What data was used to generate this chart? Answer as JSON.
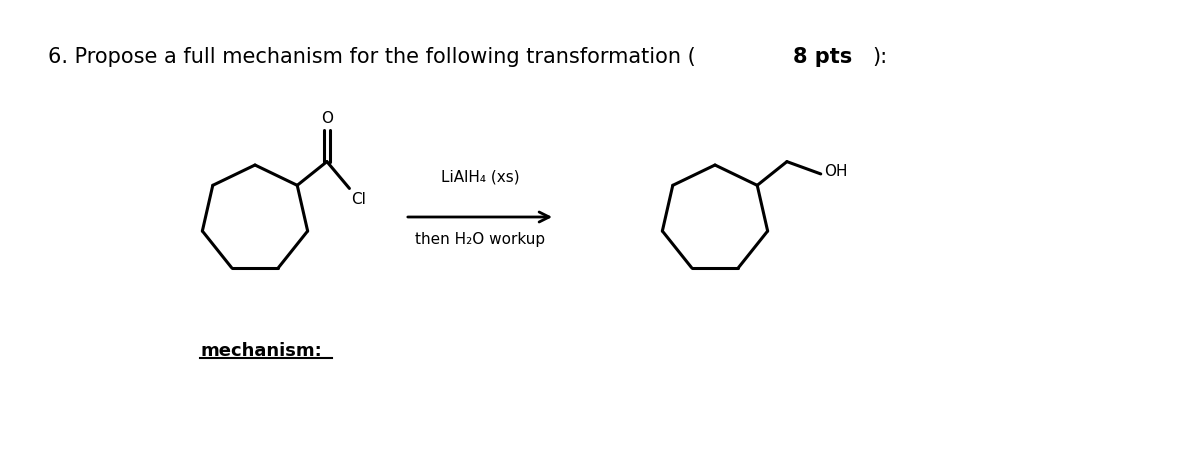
{
  "title_part1": "6. Propose a full mechanism for the following transformation (",
  "title_bold": "8 pts",
  "title_end": "):",
  "title_fontsize": 15,
  "reagent_line1": "LiAlH₄ (xs)",
  "reagent_line2": "then H₂O workup",
  "mechanism_label": "mechanism:",
  "background_color": "#ffffff",
  "line_color": "#000000",
  "line_width": 2.2
}
